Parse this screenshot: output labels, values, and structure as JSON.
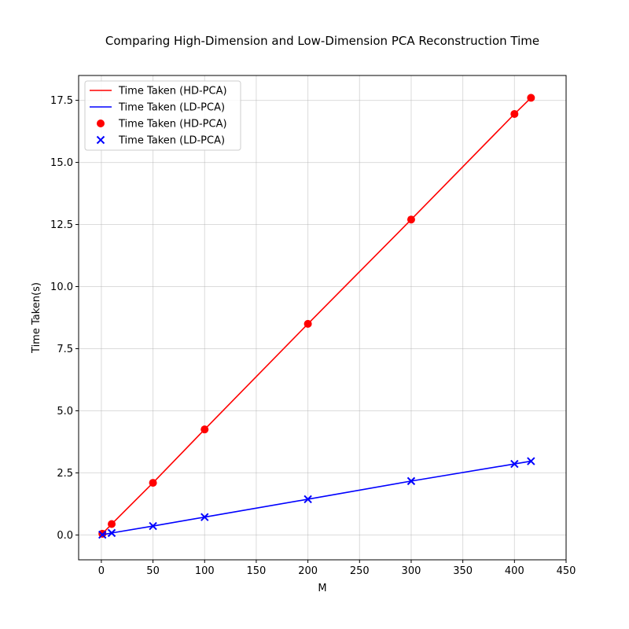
{
  "chart_data": {
    "type": "line",
    "title": "Comparing High-Dimension and Low-Dimension PCA Reconstruction Time",
    "xlabel": "M",
    "ylabel": "Time Taken(s)",
    "xlim": [
      -22,
      450
    ],
    "ylim": [
      -1.0,
      18.5
    ],
    "xticks": [
      0,
      50,
      100,
      150,
      200,
      250,
      300,
      350,
      400,
      450
    ],
    "xtick_labels": [
      "0",
      "50",
      "100",
      "150",
      "200",
      "250",
      "300",
      "350",
      "400",
      "450"
    ],
    "yticks": [
      0.0,
      2.5,
      5.0,
      7.5,
      10.0,
      12.5,
      15.0,
      17.5
    ],
    "ytick_labels": [
      "0.0",
      "2.5",
      "5.0",
      "7.5",
      "10.0",
      "12.5",
      "15.0",
      "17.5"
    ],
    "grid": true,
    "legend_position": "top-left",
    "x": [
      1,
      10,
      50,
      100,
      200,
      300,
      400,
      416
    ],
    "series": [
      {
        "name": "Time Taken (HD-PCA)",
        "color": "#ff0000",
        "marker": "circle",
        "values": [
          0.05,
          0.44,
          2.1,
          4.25,
          8.5,
          12.7,
          16.95,
          17.6
        ]
      },
      {
        "name": "Time Taken (LD-PCA)",
        "color": "#0000ff",
        "marker": "x",
        "values": [
          0.01,
          0.08,
          0.36,
          0.72,
          1.44,
          2.17,
          2.86,
          2.97
        ]
      }
    ],
    "legend": [
      "Time Taken (HD-PCA)",
      "Time Taken (LD-PCA)",
      "Time Taken (HD-PCA)",
      "Time Taken (LD-PCA)"
    ]
  }
}
